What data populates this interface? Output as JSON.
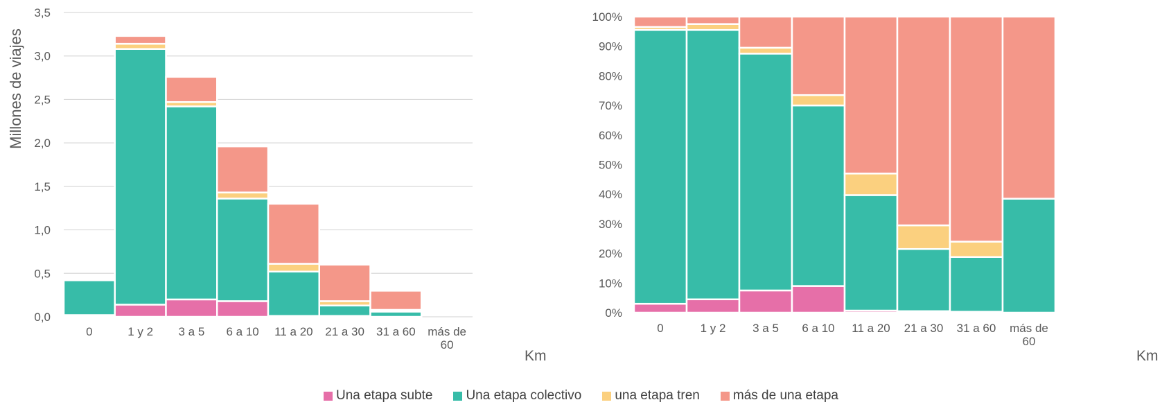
{
  "legend": [
    {
      "label": "Una etapa subte",
      "color": "#E66FA8"
    },
    {
      "label": "Una etapa colectivo",
      "color": "#37BCA8"
    },
    {
      "label": "una etapa tren",
      "color": "#FBD07F"
    },
    {
      "label": "más de una etapa",
      "color": "#F49789"
    }
  ],
  "chart_data": [
    {
      "type": "bar",
      "stacked": true,
      "title": "",
      "xlabel": "Km",
      "ylabel": "Millones de viajes",
      "ylim": [
        0,
        3.5
      ],
      "yticks": [
        "0,0",
        "0,5",
        "1,0",
        "1,5",
        "2,0",
        "2,5",
        "3,0",
        "3,5"
      ],
      "grid": true,
      "categories": [
        "0",
        "1 y 2",
        "3 a 5",
        "6 a 10",
        "11 a 20",
        "21 a 30",
        "31 a 60",
        "más de 60"
      ],
      "series": [
        {
          "name": "Una etapa subte",
          "values": [
            0.02,
            0.14,
            0.2,
            0.18,
            0.01,
            0.01,
            0.0,
            0.0
          ]
        },
        {
          "name": "Una etapa colectivo",
          "values": [
            0.4,
            2.94,
            2.22,
            1.18,
            0.51,
            0.12,
            0.06,
            0.0
          ]
        },
        {
          "name": "una etapa tren",
          "values": [
            0.0,
            0.06,
            0.05,
            0.07,
            0.09,
            0.05,
            0.02,
            0.0
          ]
        },
        {
          "name": "más de una etapa",
          "values": [
            0.0,
            0.09,
            0.29,
            0.53,
            0.69,
            0.42,
            0.22,
            0.0
          ]
        }
      ]
    },
    {
      "type": "bar",
      "stacked": true,
      "percent": true,
      "title": "",
      "xlabel": "Km",
      "ylabel": "",
      "ylim": [
        0,
        100
      ],
      "yticks": [
        "0%",
        "10%",
        "20%",
        "30%",
        "40%",
        "50%",
        "60%",
        "70%",
        "80%",
        "90%",
        "100%"
      ],
      "grid": true,
      "categories": [
        "0",
        "1 y 2",
        "3 a 5",
        "6 a 10",
        "11 a 20",
        "21 a 30",
        "31 a 60",
        "más de 60"
      ],
      "series": [
        {
          "name": "Una etapa subte",
          "values": [
            3,
            4.5,
            7.5,
            9,
            0.7,
            0.5,
            0.3,
            0
          ]
        },
        {
          "name": "Una etapa colectivo",
          "values": [
            92.5,
            91,
            80,
            61,
            39,
            21,
            18.5,
            38.5
          ]
        },
        {
          "name": "una etapa tren",
          "values": [
            1,
            2,
            2,
            3.5,
            7.3,
            8,
            5.2,
            0
          ]
        },
        {
          "name": "más de una etapa",
          "values": [
            3.5,
            2.5,
            10.5,
            26.5,
            53,
            70.5,
            76,
            61.5
          ]
        }
      ]
    }
  ]
}
